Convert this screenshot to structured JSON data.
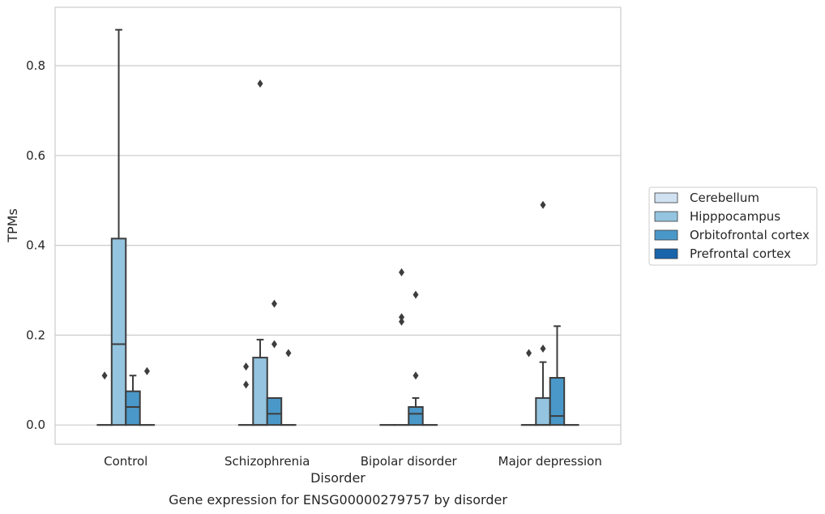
{
  "chart_data": {
    "type": "box",
    "title": "",
    "caption": "Gene expression for ENSG00000279757 by disorder",
    "xlabel": "Disorder",
    "ylabel": "TPMs",
    "ylim": [
      -0.043,
      0.93
    ],
    "yticks": [
      0.0,
      0.2,
      0.4,
      0.6,
      0.8
    ],
    "ytick_labels": [
      "0.0",
      "0.2",
      "0.4",
      "0.6",
      "0.8"
    ],
    "grid": "horizontal",
    "legend_position": "right",
    "categories": [
      "Control",
      "Schizophrenia",
      "Bipolar disorder",
      "Major depression"
    ],
    "series": [
      {
        "name": "Cerebellum",
        "color": "#d0e1f2",
        "boxes": [
          {
            "q1": 0,
            "median": 0,
            "q3": 0,
            "whisker_low": 0,
            "whisker_high": 0,
            "outliers": [
              0.11
            ]
          },
          {
            "q1": 0,
            "median": 0,
            "q3": 0,
            "whisker_low": 0,
            "whisker_high": 0,
            "outliers": [
              0.13,
              0.09
            ]
          },
          {
            "q1": 0,
            "median": 0,
            "q3": 0,
            "whisker_low": 0,
            "whisker_high": 0,
            "outliers": []
          },
          {
            "q1": 0,
            "median": 0,
            "q3": 0,
            "whisker_low": 0,
            "whisker_high": 0,
            "outliers": [
              0.16
            ]
          }
        ]
      },
      {
        "name": "Hipppocampus",
        "color": "#94c4df",
        "boxes": [
          {
            "q1": 0,
            "median": 0.18,
            "q3": 0.415,
            "whisker_low": 0,
            "whisker_high": 0.88,
            "outliers": []
          },
          {
            "q1": 0,
            "median": 0,
            "q3": 0.15,
            "whisker_low": 0,
            "whisker_high": 0.19,
            "outliers": [
              0.76
            ]
          },
          {
            "q1": 0,
            "median": 0,
            "q3": 0,
            "whisker_low": 0,
            "whisker_high": 0,
            "outliers": [
              0.34,
              0.24,
              0.23
            ]
          },
          {
            "q1": 0,
            "median": 0,
            "q3": 0.06,
            "whisker_low": 0,
            "whisker_high": 0.14,
            "outliers": [
              0.17,
              0.49
            ]
          }
        ]
      },
      {
        "name": "Orbitofrontal cortex",
        "color": "#4a98c9",
        "boxes": [
          {
            "q1": 0,
            "median": 0.04,
            "q3": 0.075,
            "whisker_low": 0,
            "whisker_high": 0.11,
            "outliers": []
          },
          {
            "q1": 0,
            "median": 0.025,
            "q3": 0.06,
            "whisker_low": 0,
            "whisker_high": 0.06,
            "outliers": [
              0.27,
              0.18
            ]
          },
          {
            "q1": 0,
            "median": 0.025,
            "q3": 0.04,
            "whisker_low": 0,
            "whisker_high": 0.06,
            "outliers": [
              0.29,
              0.11
            ]
          },
          {
            "q1": 0,
            "median": 0.02,
            "q3": 0.105,
            "whisker_low": 0,
            "whisker_high": 0.22,
            "outliers": []
          }
        ]
      },
      {
        "name": "Prefrontal cortex",
        "color": "#1764ab",
        "boxes": [
          {
            "q1": 0,
            "median": 0,
            "q3": 0,
            "whisker_low": 0,
            "whisker_high": 0,
            "outliers": [
              0.12
            ]
          },
          {
            "q1": 0,
            "median": 0,
            "q3": 0,
            "whisker_low": 0,
            "whisker_high": 0,
            "outliers": [
              0.16
            ]
          },
          {
            "q1": 0,
            "median": 0,
            "q3": 0,
            "whisker_low": 0,
            "whisker_high": 0,
            "outliers": []
          },
          {
            "q1": 0,
            "median": 0,
            "q3": 0,
            "whisker_low": 0,
            "whisker_high": 0,
            "outliers": []
          }
        ]
      }
    ]
  },
  "legend_items": [
    "Cerebellum",
    "Hipppocampus",
    "Orbitofrontal cortex",
    "Prefrontal cortex"
  ]
}
